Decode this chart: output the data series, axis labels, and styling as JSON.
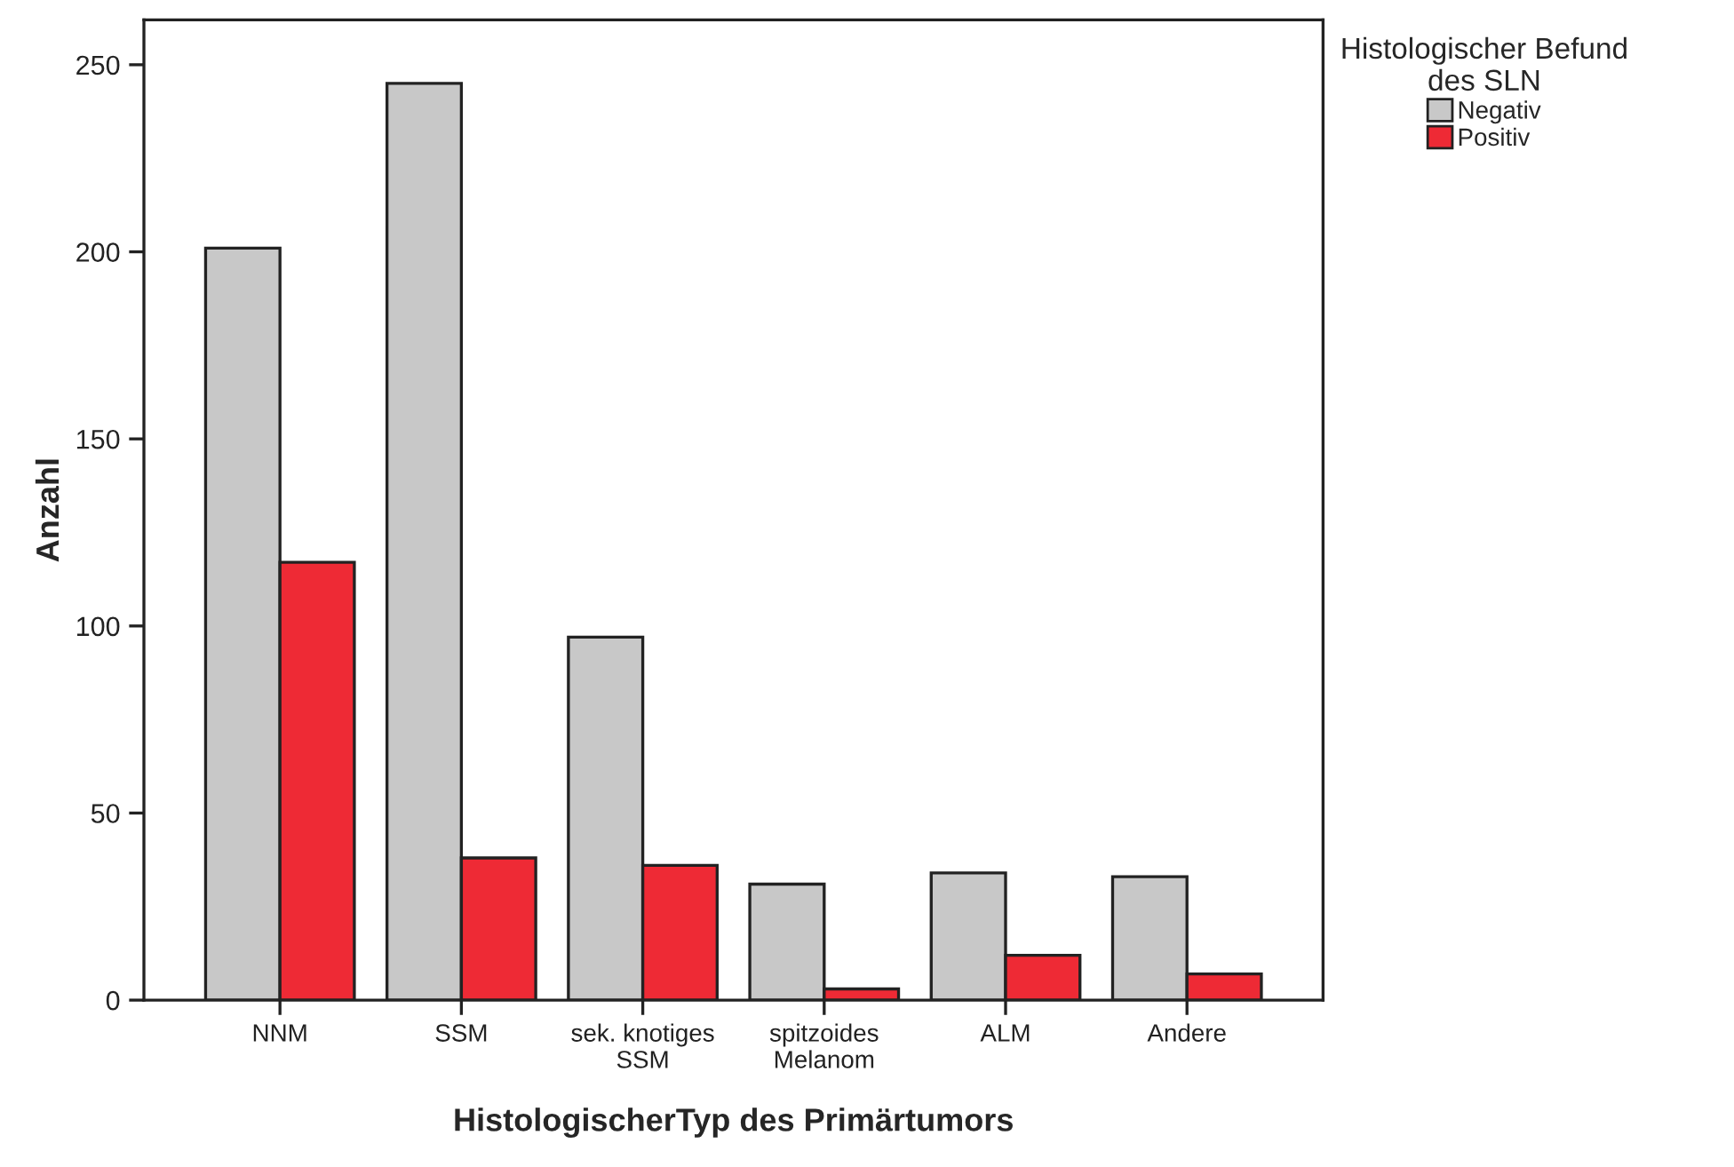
{
  "chart_data": {
    "type": "bar",
    "xlabel": "HistologischerTyp des Primärtumors",
    "ylabel": "Anzahl",
    "legend_title": "Histologischer Befund\ndes SLN",
    "categories": [
      "NNM",
      "SSM",
      "sek. knotiges\nSSM",
      "spitzoides\nMelanom",
      "ALM",
      "Andere"
    ],
    "series": [
      {
        "name": "Negativ",
        "color": "#c8c8c8",
        "values": [
          201,
          245,
          97,
          31,
          34,
          33
        ]
      },
      {
        "name": "Positiv",
        "color": "#ee2a35",
        "values": [
          117,
          38,
          36,
          3,
          12,
          7
        ]
      }
    ],
    "ylim": [
      0,
      262
    ],
    "yticks": [
      0,
      50,
      100,
      150,
      200,
      250
    ],
    "grid": false,
    "legend": "top right"
  }
}
